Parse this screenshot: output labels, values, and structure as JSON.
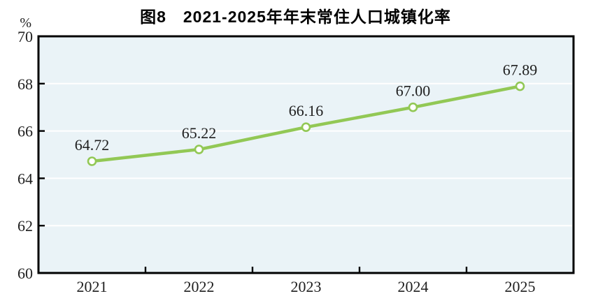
{
  "title": "图8　2021-2025年年末常住人口城镇化率",
  "colors": {
    "line": "#92c855",
    "marker_fill": "#ffffff",
    "plot_background": "#eaf3f7",
    "gridline": "#ffffff",
    "axis_border": "#000000",
    "label_text": "#1f1f1f"
  },
  "chart_data": {
    "type": "line",
    "title": "图8　2021-2025年年末常住人口城镇化率",
    "categories": [
      "2021",
      "2022",
      "2023",
      "2024",
      "2025"
    ],
    "values": [
      64.72,
      65.22,
      66.16,
      67.0,
      67.89
    ],
    "data_labels": [
      "64.72",
      "65.22",
      "66.16",
      "67.00",
      "67.89"
    ],
    "ylabel": "%",
    "ylim": [
      60,
      70
    ],
    "yticks": [
      60,
      62,
      64,
      66,
      68,
      70
    ],
    "grid": true,
    "legend": false,
    "marker": "circle-open"
  }
}
